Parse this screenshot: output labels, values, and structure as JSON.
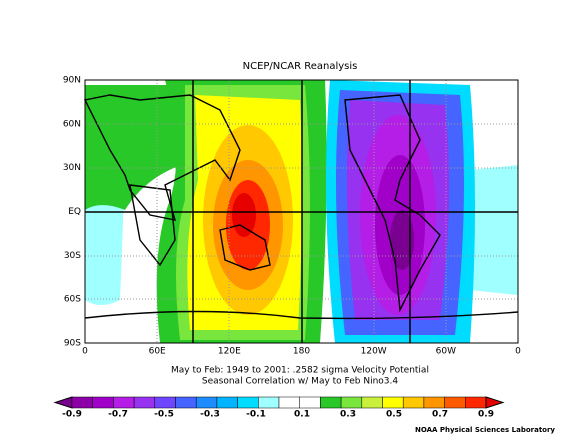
{
  "title": "NCEP/NCAR Reanalysis",
  "lat_labels": [
    "90N",
    "60N",
    "30N",
    "EQ",
    "30S",
    "60S",
    "90S"
  ],
  "lon_labels": [
    "0",
    "60E",
    "120E",
    "180",
    "120W",
    "60W",
    "0"
  ],
  "caption": [
    "May to Feb: 1949 to 2001: .2582 sigma Velocity Potential",
    "Seasonal Correlation w/ May to Feb Nino3.4"
  ],
  "colorbar": {
    "labels": [
      "-0.9",
      "-0.7",
      "-0.5",
      "-0.3",
      "-0.1",
      "0.1",
      "0.3",
      "0.5",
      "0.7",
      "0.9"
    ],
    "colors": [
      "#7a0091",
      "#8d00a8",
      "#a000c8",
      "#b41ee6",
      "#9632f0",
      "#6e46ff",
      "#4664ff",
      "#1e8cff",
      "#00b4ff",
      "#00dcff",
      "#a0ffff",
      "#ffffff",
      "#ffffff",
      "#28c828",
      "#78e63c",
      "#c8f03c",
      "#ffff00",
      "#ffc800",
      "#ff9600",
      "#ff5a00",
      "#ff2800",
      "#e60000"
    ]
  },
  "credit": "NOAA Physical Sciences Laboratory"
}
